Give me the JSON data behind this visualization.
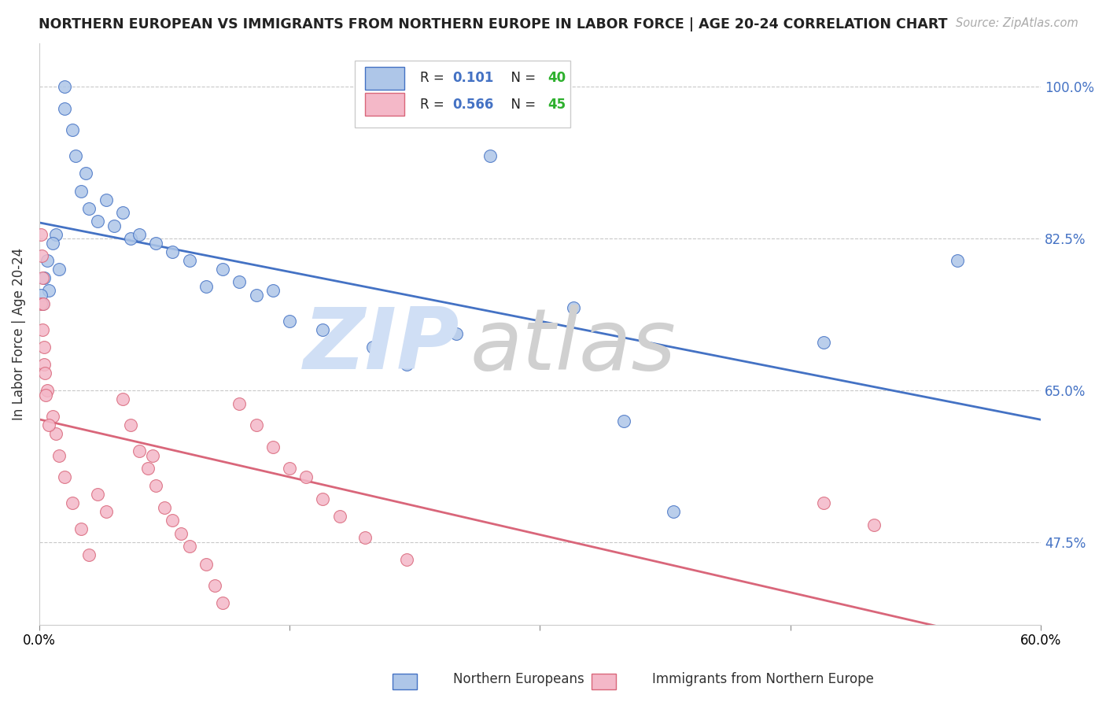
{
  "title": "NORTHERN EUROPEAN VS IMMIGRANTS FROM NORTHERN EUROPE IN LABOR FORCE | AGE 20-24 CORRELATION CHART",
  "source": "Source: ZipAtlas.com",
  "ylabel_label": "In Labor Force | Age 20-24",
  "y_tick_vals": [
    47.5,
    65.0,
    82.5,
    100.0
  ],
  "y_tick_labels": [
    "47.5%",
    "65.0%",
    "82.5%",
    "100.0%"
  ],
  "xlim": [
    0.0,
    60.0
  ],
  "ylim": [
    38.0,
    105.0
  ],
  "blue_dots": [
    [
      0.2,
      75.0
    ],
    [
      0.3,
      78.0
    ],
    [
      0.5,
      80.0
    ],
    [
      0.6,
      76.5
    ],
    [
      1.0,
      83.0
    ],
    [
      1.2,
      79.0
    ],
    [
      1.5,
      100.0
    ],
    [
      1.5,
      97.5
    ],
    [
      2.0,
      95.0
    ],
    [
      2.2,
      92.0
    ],
    [
      2.5,
      88.0
    ],
    [
      2.8,
      90.0
    ],
    [
      3.0,
      86.0
    ],
    [
      3.5,
      84.5
    ],
    [
      4.0,
      87.0
    ],
    [
      4.5,
      84.0
    ],
    [
      5.0,
      85.5
    ],
    [
      5.5,
      82.5
    ],
    [
      6.0,
      83.0
    ],
    [
      7.0,
      82.0
    ],
    [
      8.0,
      81.0
    ],
    [
      9.0,
      80.0
    ],
    [
      10.0,
      77.0
    ],
    [
      11.0,
      79.0
    ],
    [
      12.0,
      77.5
    ],
    [
      13.0,
      76.0
    ],
    [
      14.0,
      76.5
    ],
    [
      15.0,
      73.0
    ],
    [
      17.0,
      72.0
    ],
    [
      20.0,
      70.0
    ],
    [
      22.0,
      68.0
    ],
    [
      25.0,
      71.5
    ],
    [
      27.0,
      92.0
    ],
    [
      32.0,
      74.5
    ],
    [
      35.0,
      61.5
    ],
    [
      38.0,
      51.0
    ],
    [
      47.0,
      70.5
    ],
    [
      55.0,
      80.0
    ],
    [
      0.1,
      76.0
    ],
    [
      0.8,
      82.0
    ]
  ],
  "pink_dots": [
    [
      0.1,
      75.0
    ],
    [
      0.2,
      72.0
    ],
    [
      0.3,
      68.0
    ],
    [
      0.5,
      65.0
    ],
    [
      0.8,
      62.0
    ],
    [
      1.0,
      60.0
    ],
    [
      1.2,
      57.5
    ],
    [
      1.5,
      55.0
    ],
    [
      2.0,
      52.0
    ],
    [
      2.5,
      49.0
    ],
    [
      3.0,
      46.0
    ],
    [
      3.5,
      53.0
    ],
    [
      4.0,
      51.0
    ],
    [
      5.0,
      64.0
    ],
    [
      5.5,
      61.0
    ],
    [
      6.0,
      58.0
    ],
    [
      6.5,
      56.0
    ],
    [
      7.0,
      54.0
    ],
    [
      7.5,
      51.5
    ],
    [
      8.0,
      50.0
    ],
    [
      8.5,
      48.5
    ],
    [
      9.0,
      47.0
    ],
    [
      10.0,
      45.0
    ],
    [
      10.5,
      42.5
    ],
    [
      11.0,
      40.5
    ],
    [
      12.0,
      63.5
    ],
    [
      13.0,
      61.0
    ],
    [
      14.0,
      58.5
    ],
    [
      15.0,
      56.0
    ],
    [
      16.0,
      55.0
    ],
    [
      17.0,
      52.5
    ],
    [
      18.0,
      50.5
    ],
    [
      19.5,
      48.0
    ],
    [
      0.1,
      83.0
    ],
    [
      0.15,
      80.5
    ],
    [
      0.2,
      78.0
    ],
    [
      0.25,
      75.0
    ],
    [
      0.3,
      70.0
    ],
    [
      0.35,
      67.0
    ],
    [
      0.4,
      64.5
    ],
    [
      0.6,
      61.0
    ],
    [
      6.8,
      57.5
    ],
    [
      47.0,
      52.0
    ],
    [
      50.0,
      49.5
    ],
    [
      22.0,
      45.5
    ]
  ],
  "blue_line_color": "#4472c4",
  "pink_line_color": "#d9667a",
  "blue_dot_color": "#aec6e8",
  "pink_dot_color": "#f4b8c8",
  "watermark_zip_color": "#d0dff5",
  "watermark_atlas_color": "#d0d0d0",
  "grid_color": "#bbbbbb",
  "legend_R_color": "#4472c4",
  "legend_N_color": "#2db02d",
  "legend_text_color": "#222222"
}
